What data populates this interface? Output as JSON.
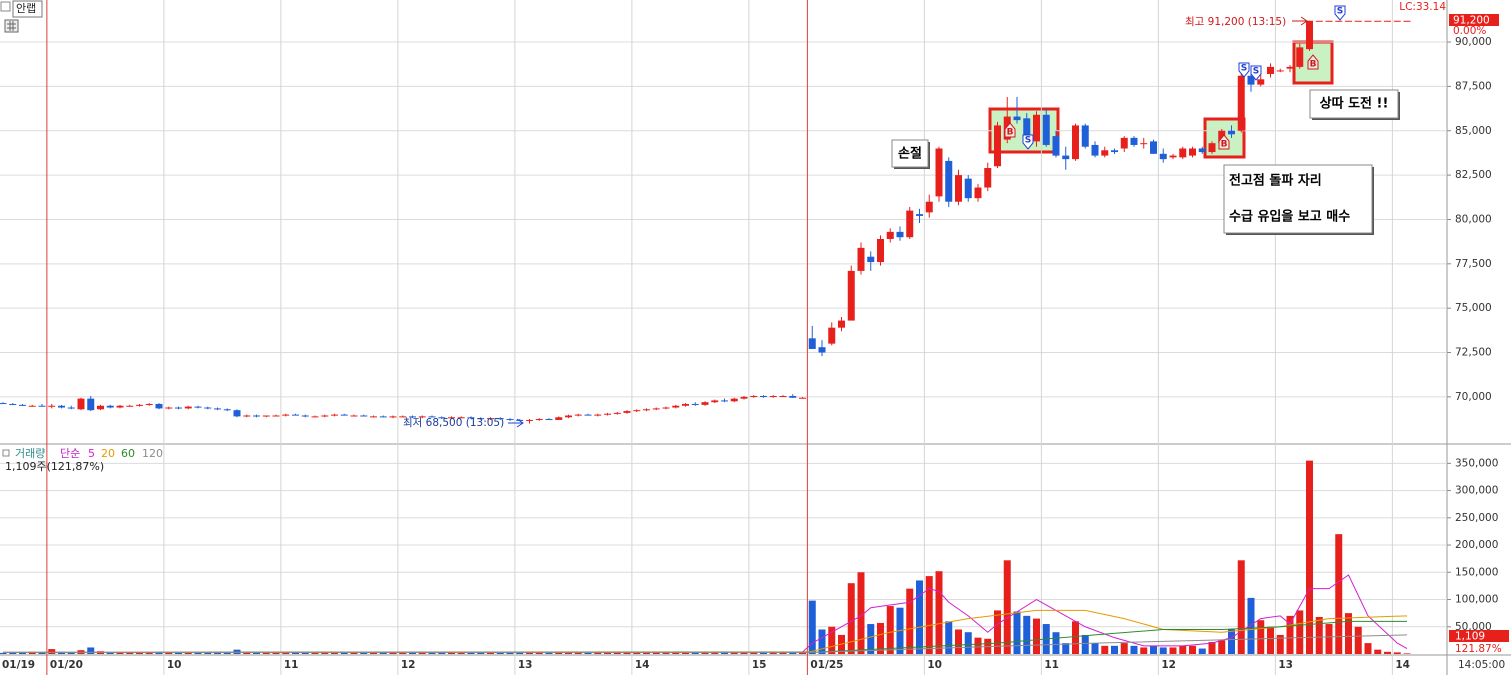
{
  "chart_data": {
    "type": "candlestick",
    "title": "안랩",
    "categories": [
      "01/19",
      null,
      null,
      null,
      null,
      "01/20",
      null,
      null,
      null,
      null,
      null,
      null,
      null,
      null,
      null,
      null,
      null,
      "10",
      null,
      null,
      null,
      null,
      null,
      null,
      null,
      null,
      null,
      null,
      null,
      "11",
      null,
      null,
      null,
      null,
      null,
      null,
      null,
      null,
      null,
      null,
      null,
      "12",
      null,
      null,
      null,
      null,
      null,
      null,
      null,
      null,
      null,
      null,
      null,
      "13",
      null,
      null,
      null,
      null,
      null,
      null,
      null,
      null,
      null,
      null,
      null,
      "14",
      null,
      null,
      null,
      null,
      null,
      null,
      null,
      null,
      null,
      null,
      null,
      "15",
      null,
      null,
      null,
      null,
      null,
      "01/25",
      null,
      null,
      null,
      null,
      null,
      null,
      null,
      null,
      null,
      null,
      null,
      "10",
      null,
      null,
      null,
      null,
      null,
      null,
      null,
      null,
      null,
      null,
      null,
      "11",
      null,
      null,
      null,
      null,
      null,
      null,
      null,
      null,
      null,
      null,
      null,
      "12",
      null,
      null,
      null,
      null,
      null,
      null,
      null,
      null,
      null,
      null,
      null,
      "13",
      null,
      null,
      null,
      null,
      null,
      null,
      null,
      null,
      null,
      null,
      null,
      "14",
      null
    ],
    "open": [
      69650,
      69600,
      69550,
      69500,
      69500,
      69450,
      69500,
      69400,
      69300,
      69900,
      69300,
      69500,
      69400,
      69500,
      69500,
      69550,
      69600,
      69350,
      69400,
      69350,
      69450,
      69400,
      69350,
      69300,
      69250,
      68900,
      68950,
      68900,
      68950,
      68950,
      69000,
      68950,
      68900,
      68900,
      68950,
      69000,
      68950,
      68950,
      68900,
      68900,
      68850,
      68900,
      68900,
      68850,
      68900,
      68850,
      68800,
      68850,
      68850,
      68800,
      68750,
      68800,
      68750,
      68700,
      68650,
      68700,
      68750,
      68700,
      68850,
      68950,
      69000,
      68950,
      69000,
      69050,
      69100,
      69200,
      69250,
      69300,
      69350,
      69400,
      69500,
      69600,
      69550,
      69700,
      69800,
      69750,
      69900,
      70000,
      70050,
      70000,
      70050,
      70050,
      69950,
      73300,
      72800,
      73000,
      73900,
      74300,
      77100,
      77900,
      77600,
      78900,
      79300,
      79000,
      80300,
      80400,
      81300,
      83300,
      81000,
      82300,
      81200,
      81800,
      83000,
      84500,
      85800,
      85700,
      84400,
      85900,
      84700,
      83600,
      83400,
      85300,
      84200,
      83600,
      83900,
      84000,
      84600,
      84300,
      84400,
      83700,
      83500,
      83500,
      83600,
      84000,
      83800,
      84300,
      85000,
      85000,
      88100,
      87600,
      88200,
      88400,
      88500,
      88600,
      89600,
      91200,
      91200,
      91200,
      91200,
      91200,
      91200,
      91200,
      91200,
      91200,
      91200
    ],
    "high": [
      69700,
      69650,
      69600,
      69550,
      69600,
      69600,
      69550,
      69500,
      69950,
      70050,
      69550,
      69550,
      69550,
      69550,
      69600,
      69650,
      69650,
      69450,
      69450,
      69500,
      69500,
      69450,
      69400,
      69350,
      69300,
      69000,
      69000,
      68950,
      69000,
      69050,
      69050,
      69000,
      68950,
      69000,
      69050,
      69050,
      69000,
      69000,
      68950,
      68950,
      68950,
      68950,
      68950,
      68950,
      68950,
      68900,
      68900,
      68900,
      68900,
      68850,
      68850,
      68850,
      68800,
      68750,
      68750,
      68800,
      68800,
      68900,
      69000,
      69050,
      69050,
      69050,
      69100,
      69150,
      69250,
      69300,
      69350,
      69400,
      69450,
      69550,
      69650,
      69700,
      69750,
      69850,
      69900,
      69950,
      70050,
      70100,
      70100,
      70100,
      70100,
      70150,
      70000,
      74000,
      73200,
      74200,
      74500,
      77400,
      78700,
      78200,
      79100,
      79500,
      79600,
      80700,
      80600,
      81400,
      84100,
      83500,
      82800,
      82500,
      82000,
      83200,
      85500,
      86900,
      86900,
      86000,
      86100,
      86300,
      85000,
      84100,
      85400,
      85400,
      84400,
      84100,
      84000,
      84700,
      84700,
      84600,
      84500,
      84000,
      83700,
      84100,
      84100,
      84100,
      84400,
      85100,
      85300,
      88200,
      88300,
      88200,
      88800,
      88500,
      88700,
      89900,
      91200,
      91200,
      91200,
      91200,
      91200,
      91200,
      91200,
      91200,
      91200,
      91200,
      91200
    ],
    "low": [
      69600,
      69550,
      69500,
      69450,
      69450,
      69350,
      69350,
      69300,
      69250,
      69200,
      69250,
      69350,
      69350,
      69450,
      69450,
      69500,
      69300,
      69300,
      69300,
      69300,
      69350,
      69300,
      69250,
      69200,
      68850,
      68850,
      68850,
      68850,
      68900,
      68900,
      68950,
      68850,
      68850,
      68850,
      68900,
      68950,
      68900,
      68900,
      68850,
      68850,
      68800,
      68850,
      68800,
      68800,
      68850,
      68750,
      68750,
      68800,
      68750,
      68700,
      68700,
      68700,
      68650,
      68650,
      68500,
      68650,
      68700,
      68700,
      68800,
      68900,
      68950,
      68900,
      68950,
      69000,
      69050,
      69150,
      69200,
      69250,
      69300,
      69350,
      69450,
      69500,
      69500,
      69650,
      69700,
      69700,
      69850,
      69950,
      69950,
      69950,
      70000,
      69950,
      69950,
      72700,
      72300,
      72900,
      73700,
      74300,
      76900,
      77100,
      77400,
      78700,
      78800,
      78900,
      79800,
      80100,
      81000,
      80700,
      80800,
      81000,
      81000,
      81600,
      82900,
      84300,
      85400,
      84300,
      84100,
      84100,
      83500,
      82800,
      83300,
      84000,
      83500,
      83500,
      83700,
      83800,
      84100,
      84000,
      83700,
      83200,
      83400,
      83400,
      83500,
      83700,
      83700,
      84200,
      84600,
      84900,
      87200,
      87500,
      88000,
      88300,
      88300,
      88500,
      89500,
      91200,
      91200,
      91200,
      91200,
      91200,
      91200,
      91200,
      91200,
      91200,
      91200
    ],
    "close": [
      69600,
      69550,
      69500,
      69500,
      69450,
      69500,
      69400,
      69350,
      69900,
      69250,
      69500,
      69400,
      69500,
      69500,
      69550,
      69600,
      69350,
      69400,
      69350,
      69450,
      69400,
      69350,
      69300,
      69250,
      68900,
      68950,
      68900,
      68950,
      68950,
      69000,
      68950,
      68900,
      68900,
      68950,
      69000,
      68950,
      68950,
      68900,
      68900,
      68850,
      68900,
      68900,
      68850,
      68900,
      68850,
      68800,
      68850,
      68850,
      68800,
      68750,
      68800,
      68750,
      68700,
      68650,
      68700,
      68750,
      68700,
      68850,
      68950,
      69000,
      68950,
      69000,
      69050,
      69100,
      69200,
      69250,
      69300,
      69350,
      69400,
      69500,
      69600,
      69550,
      69700,
      69800,
      69750,
      69900,
      70000,
      70050,
      70000,
      70050,
      70050,
      69950,
      69950,
      72700,
      72500,
      73900,
      74300,
      77100,
      78400,
      77600,
      78900,
      79300,
      79000,
      80500,
      80200,
      81000,
      84000,
      81000,
      82500,
      81200,
      81800,
      82900,
      85300,
      85800,
      85600,
      84400,
      85900,
      84200,
      83600,
      83400,
      85300,
      84100,
      83600,
      83900,
      83800,
      84600,
      84200,
      84300,
      83700,
      83400,
      83600,
      84000,
      84000,
      83800,
      84300,
      85000,
      84800,
      88100,
      87600,
      87900,
      88600,
      88400,
      88600,
      89700,
      91200,
      91200,
      91200,
      91200,
      91200,
      91200,
      91200,
      91200,
      91200,
      91200,
      91200
    ],
    "volume": [
      2000,
      2500,
      3000,
      4000,
      3000,
      9000,
      4000,
      3000,
      7000,
      12000,
      5000,
      3000,
      3000,
      2500,
      3000,
      2500,
      4000,
      3000,
      2500,
      2000,
      2500,
      3000,
      2500,
      3000,
      8000,
      3500,
      3000,
      2500,
      2000,
      2000,
      2500,
      2000,
      2000,
      2500,
      2000,
      2000,
      2500,
      2000,
      2000,
      2500,
      2000,
      2000,
      2500,
      2000,
      2000,
      2500,
      3000,
      2500,
      2000,
      3000,
      2500,
      2000,
      3000,
      3500,
      4000,
      3000,
      2500,
      3000,
      3500,
      3000,
      2500,
      3000,
      3000,
      3500,
      3000,
      3000,
      3500,
      3000,
      3500,
      4000,
      4000,
      3500,
      4000,
      4500,
      4000,
      3500,
      4000,
      4500,
      3500,
      3000,
      3500,
      4000,
      3000,
      98000,
      45000,
      50000,
      35000,
      130000,
      150000,
      55000,
      57000,
      88000,
      85000,
      120000,
      135000,
      143000,
      152000,
      60000,
      45000,
      40000,
      30000,
      28000,
      80000,
      172000,
      78000,
      70000,
      65000,
      55000,
      40000,
      20000,
      60000,
      35000,
      20000,
      15000,
      15000,
      20000,
      15000,
      12000,
      15000,
      12000,
      12000,
      15000,
      15000,
      10000,
      22000,
      25000,
      45000,
      172000,
      103000,
      62000,
      50000,
      35000,
      70000,
      80000,
      355000,
      68000,
      55000,
      220000,
      75000,
      50000,
      20000,
      8000,
      4000,
      3000,
      1109
    ],
    "up_color": "#e8201c",
    "down_color": "#1f5fd8",
    "ylim": [
      67400,
      92370
    ],
    "yticks": [
      {
        "value": 70000,
        "label": "70,000"
      },
      {
        "value": 72500,
        "label": "72,500"
      },
      {
        "value": 75000,
        "label": "75,000"
      },
      {
        "value": 77500,
        "label": "77,500"
      },
      {
        "value": 80000,
        "label": "80,000"
      },
      {
        "value": 82500,
        "label": "82,500"
      },
      {
        "value": 85000,
        "label": "85,000"
      },
      {
        "value": 87500,
        "label": "87,500"
      },
      {
        "value": 90000,
        "label": "90,000"
      }
    ],
    "volume_ylim": [
      0,
      380000
    ],
    "volume_yticks": [
      {
        "value": 50000,
        "label": "50,000"
      },
      {
        "value": 100000,
        "label": "100,000"
      },
      {
        "value": 150000,
        "label": "150,000"
      },
      {
        "value": 200000,
        "label": "200,000"
      },
      {
        "value": 250000,
        "label": "250,000"
      },
      {
        "value": 300000,
        "label": "300,000"
      },
      {
        "value": 350000,
        "label": "350,000"
      }
    ],
    "grid": true,
    "volume_title": "거래량",
    "ma_label": "단순",
    "ma_series": [
      {
        "name": "5",
        "color": "#d21fd2",
        "x": [
          0,
          82,
          83,
          85,
          88,
          89,
          91,
          93,
          95,
          96,
          97,
          99,
          101,
          102,
          106,
          108,
          111,
          114,
          117,
          121,
          124,
          126,
          129,
          131,
          132,
          134,
          136,
          138,
          140,
          143,
          144
        ],
        "values": [
          3000,
          3500,
          20000,
          40000,
          70000,
          85000,
          90000,
          95000,
          120000,
          115000,
          95000,
          70000,
          40000,
          55000,
          100000,
          80000,
          50000,
          30000,
          15000,
          15000,
          20000,
          30000,
          65000,
          70000,
          55000,
          120000,
          120000,
          145000,
          70000,
          20000,
          10000
        ]
      },
      {
        "name": "20",
        "color": "#e69a00",
        "x": [
          0,
          82,
          83,
          91,
          99,
          106,
          111,
          115,
          119,
          125,
          131,
          136,
          144
        ],
        "values": [
          3000,
          3500,
          5000,
          40000,
          65000,
          80000,
          80000,
          65000,
          45000,
          40000,
          50000,
          65000,
          70000
        ]
      },
      {
        "name": "60",
        "color": "#2e8b2e",
        "x": [
          0,
          82,
          83,
          102,
          112,
          119,
          125,
          131,
          138,
          144
        ],
        "values": [
          3000,
          3500,
          3000,
          20000,
          35000,
          45000,
          45000,
          50000,
          60000,
          60000
        ]
      },
      {
        "name": "120",
        "color": "#8c8c8c",
        "x": [
          0,
          82,
          83,
          112,
          123,
          133,
          144
        ],
        "values": [
          3000,
          3000,
          3000,
          20000,
          25000,
          30000,
          35000
        ]
      }
    ],
    "volume_note": "1,109주(121,87%)",
    "time_label": "14:05:00",
    "lc_label": "LC:33.14",
    "last_price_label": "91,200",
    "change_label": "0.00%",
    "last_volume_label": "1,109",
    "volume_ratio_label": "121.87%",
    "high_label": "최고 91,200 (13:15)",
    "low_label": "최저 68,500 (13:05)",
    "notes": [
      "손절",
      "상따 도전 !!",
      "전고점 돌파 자리",
      "수급 유입을 보고 매수"
    ],
    "signals": [
      "B",
      "S",
      "B",
      "S",
      "S",
      "B",
      "S"
    ]
  }
}
